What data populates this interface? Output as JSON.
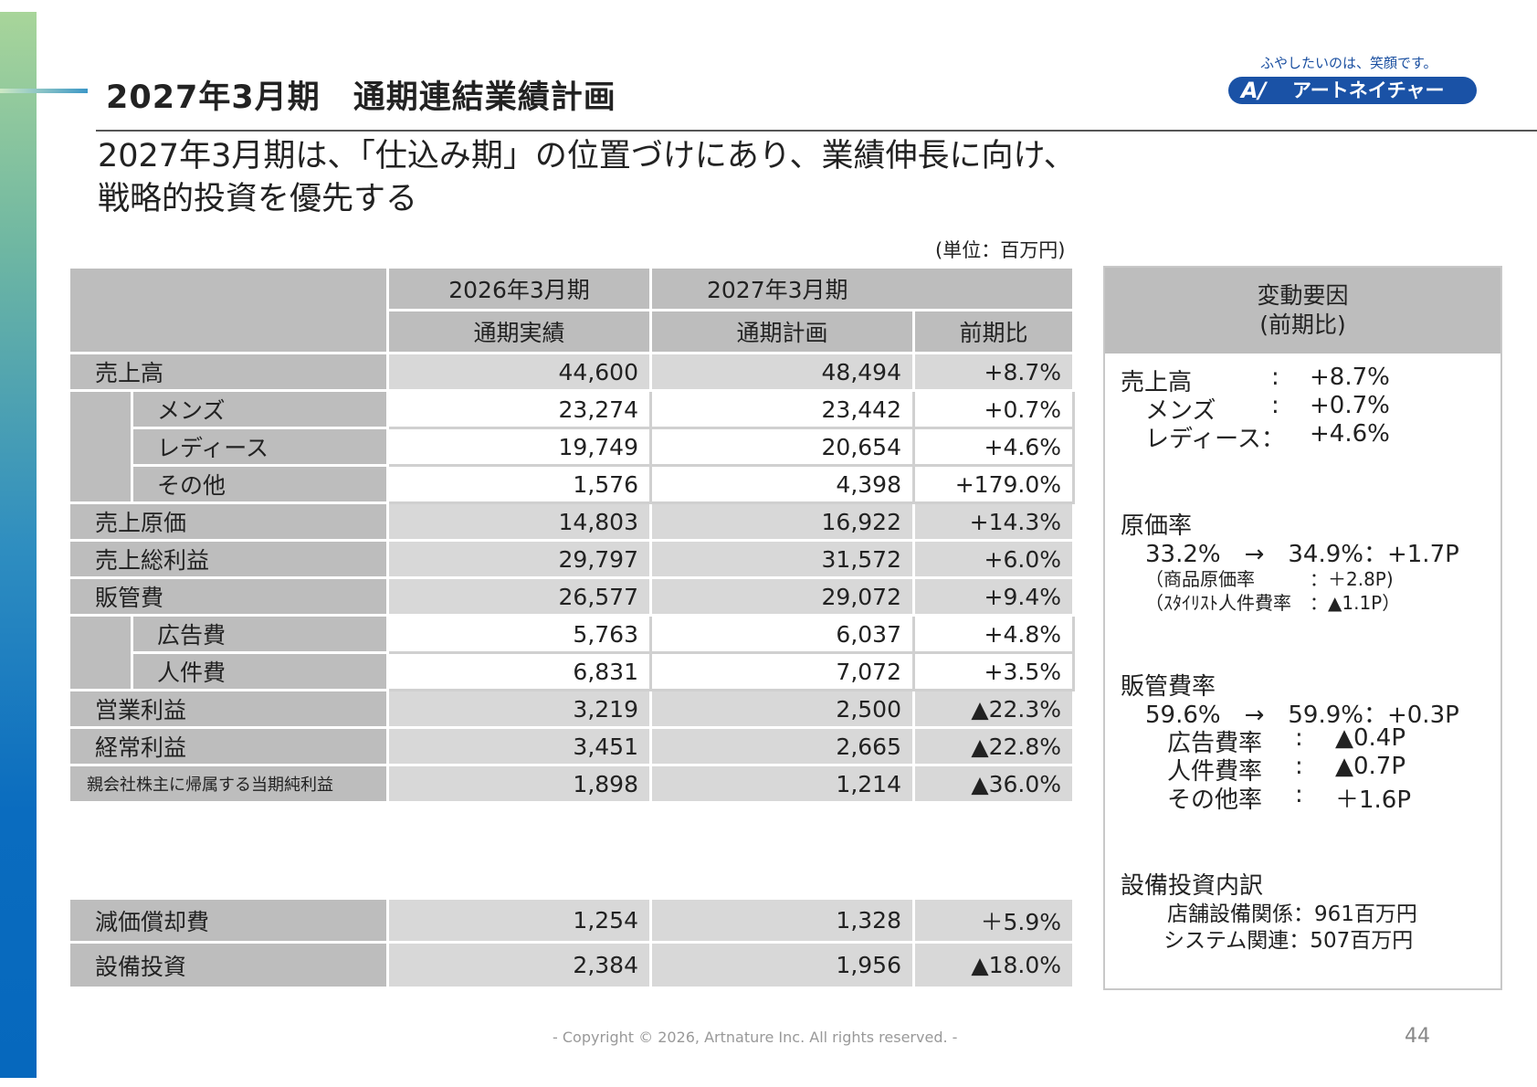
{
  "header": {
    "title": "2027年3月期　通期連結業績計画",
    "logo_tagline": "ふやしたいのは、笑顔です。",
    "logo_mark": "A/",
    "logo_name": "アートネイチャー"
  },
  "subtitle": {
    "line1": "2027年3月期は、「仕込み期」の位置づけにあり、業績伸長に向け、",
    "line2": "戦略的投資を優先する"
  },
  "unit_note": "(単位：百万円)",
  "table": {
    "col_fy2026": "2026年3月期",
    "col_fy2027": "2027年3月期",
    "col_actual": "通期実績",
    "col_plan": "通期計画",
    "col_yoy": "前期比",
    "rows": [
      {
        "label": "売上高",
        "a": "44,600",
        "p": "48,494",
        "y": "+8.7%"
      },
      {
        "label": "メンズ",
        "a": "23,274",
        "p": "23,442",
        "y": "+0.7%"
      },
      {
        "label": "レディース",
        "a": "19,749",
        "p": "20,654",
        "y": "+4.6%"
      },
      {
        "label": "その他",
        "a": "1,576",
        "p": "4,398",
        "y": "+179.0%"
      },
      {
        "label": "売上原価",
        "a": "14,803",
        "p": "16,922",
        "y": "+14.3%"
      },
      {
        "label": "売上総利益",
        "a": "29,797",
        "p": "31,572",
        "y": "+6.0%"
      },
      {
        "label": "販管費",
        "a": "26,577",
        "p": "29,072",
        "y": "+9.4%"
      },
      {
        "label": "広告費",
        "a": "5,763",
        "p": "6,037",
        "y": "+4.8%"
      },
      {
        "label": "人件費",
        "a": "6,831",
        "p": "7,072",
        "y": "+3.5%"
      },
      {
        "label": "営業利益",
        "a": "3,219",
        "p": "2,500",
        "y": "▲22.3%"
      },
      {
        "label": "経常利益",
        "a": "3,451",
        "p": "2,665",
        "y": "▲22.8%"
      },
      {
        "label": "親会社株主に帰属する当期純利益",
        "a": "1,898",
        "p": "1,214",
        "y": "▲36.0%"
      }
    ],
    "rows2": [
      {
        "label": "減価償却費",
        "a": "1,254",
        "p": "1,328",
        "y": "＋5.9%"
      },
      {
        "label": "設備投資",
        "a": "2,384",
        "p": "1,956",
        "y": "▲18.0%"
      }
    ]
  },
  "side": {
    "head1": "変動要因",
    "head2": "(前期比)",
    "sales_label": "売上高",
    "sales_sep": ":",
    "sales_val": "+8.7%",
    "mens_label": "メンズ",
    "mens_sep": ":",
    "mens_val": "+0.7%",
    "ladies_label": "レディース：",
    "ladies_val": "+4.6%",
    "cost_label": "原価率",
    "cost_line": "33.2%　→　34.9%：+1.7P",
    "cost_sub1": "（商品原価率　　　：＋2.8P)",
    "cost_sub2": "（ｽﾀｲﾘｽﾄ人件費率　：▲1.1P）",
    "sga_label": "販管費率",
    "sga_line": "59.6%　→　59.9%：+0.3P",
    "ad_label": "広告費率",
    "ad_sep": ":",
    "ad_val": "▲0.4P",
    "labor_label": "人件費率",
    "labor_sep": ":",
    "labor_val": "▲0.7P",
    "other_label": "その他率",
    "other_sep": ":",
    "other_val": "＋1.6P",
    "capex_label": "設備投資内訳",
    "capex_line1": "店舗設備関係：961百万円",
    "capex_line2": "システム関連：507百万円"
  },
  "footer": "- Copyright © 2026, Artnature Inc. All rights reserved. -",
  "page_number": "44"
}
